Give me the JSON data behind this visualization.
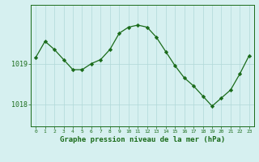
{
  "x": [
    0,
    1,
    2,
    3,
    4,
    5,
    6,
    7,
    8,
    9,
    10,
    11,
    12,
    13,
    14,
    15,
    16,
    17,
    18,
    19,
    20,
    21,
    22,
    23
  ],
  "y": [
    1019.15,
    1019.55,
    1019.35,
    1019.1,
    1018.85,
    1018.85,
    1019.0,
    1019.1,
    1019.35,
    1019.75,
    1019.9,
    1019.95,
    1019.9,
    1019.65,
    1019.3,
    1018.95,
    1018.65,
    1018.45,
    1018.2,
    1017.95,
    1018.15,
    1018.35,
    1018.75,
    1019.2
  ],
  "line_color": "#1a6b1a",
  "marker": "D",
  "marker_size": 2.2,
  "background_color": "#d6f0f0",
  "grid_color": "#b0d8d8",
  "xlabel": "Graphe pression niveau de la mer (hPa)",
  "xlabel_fontsize": 6.5,
  "ytick_labels": [
    "1018",
    "1019"
  ],
  "ylim": [
    1017.45,
    1020.45
  ],
  "xlim": [
    -0.5,
    23.5
  ],
  "title": ""
}
